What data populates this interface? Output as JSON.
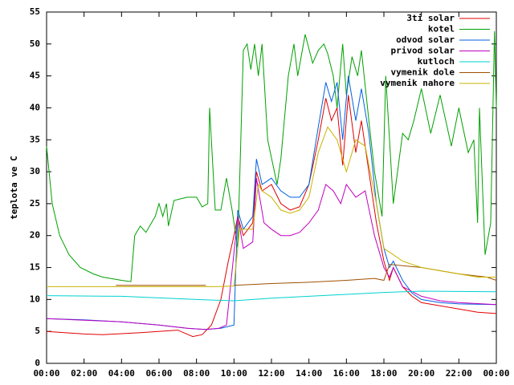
{
  "chart_data": {
    "type": "line",
    "y_label": "teplota ve C",
    "xlim": [
      0,
      24
    ],
    "ylim": [
      0,
      55
    ],
    "xticks": [
      {
        "value": 0,
        "label": "00:00"
      },
      {
        "value": 2,
        "label": "02:00"
      },
      {
        "value": 4,
        "label": "04:00"
      },
      {
        "value": 6,
        "label": "06:00"
      },
      {
        "value": 8,
        "label": "08:00"
      },
      {
        "value": 10,
        "label": "10:00"
      },
      {
        "value": 12,
        "label": "12:00"
      },
      {
        "value": 14,
        "label": "14:00"
      },
      {
        "value": 16,
        "label": "16:00"
      },
      {
        "value": 18,
        "label": "18:00"
      },
      {
        "value": 20,
        "label": "20:00"
      },
      {
        "value": 22,
        "label": "22:00"
      },
      {
        "value": 24,
        "label": "00:00"
      }
    ],
    "yticks": [
      0,
      5,
      10,
      15,
      20,
      25,
      30,
      35,
      40,
      45,
      50,
      55
    ],
    "legend": "top-right",
    "series": [
      {
        "name": "3ti solar",
        "color": "#e00000",
        "x": [
          0,
          2,
          3,
          5,
          7,
          7.8,
          8.3,
          8.8,
          9.3,
          9.7,
          10,
          10.2,
          10.5,
          11,
          11.2,
          11.5,
          12,
          12.5,
          13,
          13.5,
          14,
          14.5,
          14.9,
          15.2,
          15.5,
          15.8,
          16.1,
          16.5,
          16.8,
          17.2,
          17.6,
          18,
          18.3,
          18.5,
          19,
          19.5,
          20,
          21,
          22,
          23,
          24
        ],
        "values": [
          5,
          4.6,
          4.5,
          4.8,
          5.2,
          4.2,
          4.5,
          6,
          10,
          16,
          20,
          23,
          20,
          22,
          30,
          27,
          28,
          25,
          24,
          24.5,
          28,
          35,
          41.5,
          38,
          40,
          31,
          42,
          33,
          38,
          30,
          22,
          16,
          13,
          15,
          12,
          10.5,
          9.5,
          9,
          8.5,
          8,
          7.8
        ]
      },
      {
        "name": "kotel",
        "color": "#00a000",
        "x": [
          0,
          0.3,
          0.7,
          1.2,
          1.8,
          2.5,
          3,
          4,
          4.5,
          4.7,
          5,
          5.3,
          5.8,
          6,
          6.2,
          6.4,
          6.5,
          6.8,
          7.5,
          8,
          8.3,
          8.6,
          8.7,
          9,
          9.3,
          9.6,
          9.9,
          10.2,
          10.5,
          10.7,
          10.9,
          11.1,
          11.3,
          11.5,
          11.8,
          12.3,
          12.5,
          12.9,
          13.2,
          13.4,
          13.8,
          14.2,
          14.5,
          14.8,
          15,
          15.3,
          15.5,
          15.8,
          16,
          16.3,
          16.6,
          16.8,
          17.2,
          17.5,
          17.9,
          18.1,
          18.5,
          19,
          19.3,
          19.6,
          20,
          20.5,
          21,
          21.6,
          22,
          22.5,
          22.8,
          23,
          23.1,
          23.4,
          23.7,
          23.9,
          24
        ],
        "values": [
          34,
          25,
          20,
          17,
          15,
          14,
          13.5,
          13,
          12.8,
          20,
          21.5,
          20.5,
          23,
          25,
          23,
          25,
          21.5,
          25.5,
          26,
          26,
          24.5,
          25,
          40,
          24,
          24,
          29,
          24,
          18,
          49,
          50,
          46,
          50,
          45,
          50,
          35,
          28,
          32,
          45,
          50,
          45,
          51.5,
          47,
          49,
          50,
          48.5,
          45,
          40,
          50,
          42,
          48,
          45,
          49,
          38,
          30,
          23,
          45,
          25,
          36,
          35,
          38,
          43,
          36,
          42,
          34,
          40,
          33,
          35,
          22,
          40,
          17,
          22,
          52,
          40
        ]
      },
      {
        "name": "odvod solar",
        "color": "#0060e0",
        "x": [
          0,
          2,
          4,
          6,
          7.5,
          8.5,
          9.3,
          10,
          10.2,
          10.5,
          11,
          11.2,
          11.5,
          12,
          12.5,
          13,
          13.5,
          14,
          14.5,
          14.9,
          15.2,
          15.5,
          15.8,
          16.1,
          16.5,
          16.8,
          17.2,
          17.6,
          18,
          18.3,
          18.5,
          19,
          19.5,
          20,
          21,
          22,
          24
        ],
        "values": [
          7,
          6.8,
          6.5,
          6,
          5.5,
          5.3,
          5.5,
          6,
          24,
          21,
          23,
          32,
          28,
          29,
          27,
          26,
          26,
          28,
          37,
          44,
          41,
          44,
          35,
          45,
          38,
          43,
          36,
          25,
          18,
          15,
          16,
          13,
          11,
          10,
          9.5,
          9.3,
          9.2
        ]
      },
      {
        "name": "privod solar",
        "color": "#c000c0",
        "x": [
          0,
          4,
          6,
          7.5,
          8.5,
          9.2,
          9.6,
          10.2,
          10.5,
          11,
          11.2,
          11.6,
          12,
          12.5,
          13,
          13.5,
          14,
          14.5,
          14.9,
          15.3,
          15.7,
          16,
          16.5,
          17,
          17.5,
          18,
          18.3,
          18.5,
          19,
          20,
          21,
          22,
          24
        ],
        "values": [
          7,
          6.5,
          6,
          5.5,
          5.3,
          5.5,
          6,
          23,
          18,
          19,
          29,
          22,
          21,
          20,
          20,
          20.5,
          22,
          24,
          28,
          27,
          25,
          28,
          26,
          27,
          20,
          15,
          13.5,
          15,
          12,
          10.5,
          9.8,
          9.5,
          9.2
        ]
      },
      {
        "name": "kutloch",
        "color": "#00d0d0",
        "x": [
          0,
          4,
          8,
          10,
          12,
          14,
          16,
          18,
          20,
          24
        ],
        "values": [
          10.6,
          10.5,
          10,
          9.8,
          10.2,
          10.5,
          10.8,
          11.1,
          11.3,
          11.2
        ]
      },
      {
        "name": "vymenik dole",
        "color": "#a05000",
        "x": [
          3.7,
          8.5,
          9,
          10,
          12,
          14,
          16,
          17.5,
          18,
          18.3,
          20,
          22,
          23.5,
          24
        ],
        "values": [
          12.2,
          12.2,
          null,
          12.2,
          12.5,
          12.7,
          13,
          13.3,
          13,
          15.5,
          15,
          14,
          13.5,
          13
        ]
      },
      {
        "name": "vymenik nahore",
        "color": "#c8b400",
        "x": [
          0,
          9,
          10,
          10.3,
          11,
          11.3,
          11.5,
          12,
          12.5,
          13,
          13.5,
          14,
          14.5,
          15,
          15.5,
          16,
          16.5,
          17,
          17.6,
          18,
          18.5,
          19,
          20,
          21,
          22,
          23,
          24
        ],
        "values": [
          12,
          12,
          12.1,
          21,
          21,
          28,
          27,
          26,
          24,
          23.5,
          24,
          26,
          33,
          37,
          35,
          30,
          35,
          34,
          25,
          18,
          17,
          16,
          15,
          14.5,
          14,
          13.5,
          13.5
        ]
      }
    ]
  }
}
